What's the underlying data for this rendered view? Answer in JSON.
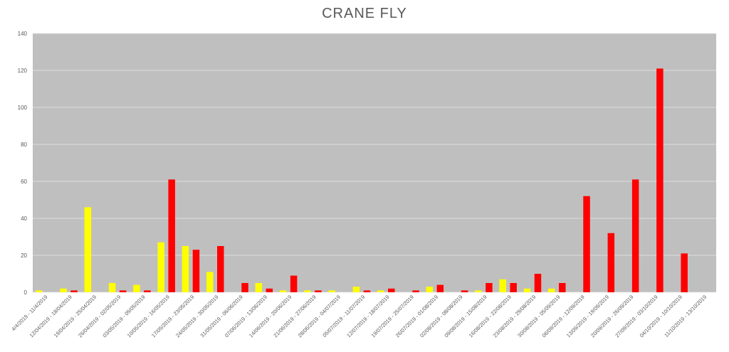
{
  "chart_data": {
    "type": "bar",
    "title": "CRANE FLY",
    "xlabel": "",
    "ylabel": "",
    "ylim": [
      0,
      140
    ],
    "yticks": [
      0,
      20,
      40,
      60,
      80,
      100,
      120,
      140
    ],
    "grid": true,
    "legend": "none",
    "plot_background": "#bfbfbf",
    "colors": {
      "red": "#ff0000",
      "yellow": "#ffff00"
    },
    "categories": [
      "4/4/2019 - 11/4/2019",
      "12/04/2019 - 18/04/2019",
      "19/04/2019 - 25/04/2019",
      "26/04/2019 - 02/05/2019",
      "03/05/2019 - 09/05/2019",
      "10/05/2019 - 16/05/2019",
      "17/05/2019 - 23/05/2019",
      "24/05/2019 - 30/05/2019",
      "31/05/2019 - 06/06/2019",
      "07/06/2019 - 13/06/2019",
      "14/06/2019 - 20/06/2019",
      "21/06/2019 - 27/06/2019",
      "28/06/2019 - 04/07/2019",
      "05/07/2019 - 11/07/2019",
      "12/07/2019 - 18/07/2019",
      "19/07/2019 - 25/07/2019",
      "26/07/2019 - 01/08/2019",
      "02/08/2019 - 08/08/2019",
      "09/08/2019 - 15/08/2019",
      "16/08/2019 - 22/08/2019",
      "23/08/2019 - 29/08/2019",
      "30/08/2019 - 05/09/2019",
      "06/09/2019 - 12/09/2019",
      "13/09/2019 - 19/09/2019",
      "20/09/2019 - 26/09/2019",
      "27/09/2019 - 03/10/2019",
      "04/10/2019 - 10/10/2019",
      "11/10/2019 - 13/10/2019"
    ],
    "series": [
      {
        "color": "#ffff00",
        "values": [
          1,
          2,
          46,
          5,
          4,
          27,
          25,
          11,
          0,
          5,
          1,
          1,
          1,
          3,
          1,
          0,
          3,
          0,
          1,
          7,
          2,
          2,
          0,
          0,
          0,
          0,
          0,
          0
        ]
      },
      {
        "color": "#ff0000",
        "values": [
          0,
          1,
          0,
          1,
          1,
          61,
          23,
          25,
          5,
          2,
          9,
          1,
          0,
          1,
          2,
          1,
          4,
          1,
          5,
          5,
          10,
          5,
          52,
          32,
          61,
          121,
          21,
          0
        ]
      }
    ]
  }
}
